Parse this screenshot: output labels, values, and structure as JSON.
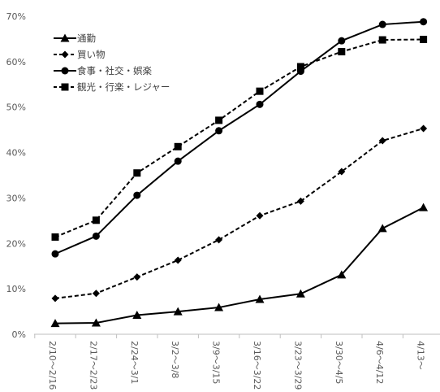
{
  "chart_data": {
    "type": "line",
    "title": "",
    "xlabel": "",
    "ylabel": "",
    "ylim": [
      0,
      70
    ],
    "y_ticks": [
      0,
      10,
      20,
      30,
      40,
      50,
      60,
      70
    ],
    "y_tick_labels": [
      "0%",
      "10%",
      "20%",
      "30%",
      "40%",
      "50%",
      "60%",
      "70%"
    ],
    "grid": false,
    "legend_position": "top-left",
    "categories": [
      "2/10～2/16",
      "2/17～2/23",
      "2/24～3/1",
      "3/2～3/8",
      "3/9～3/15",
      "3/16～3/22",
      "3/23～3/29",
      "3/30～4/5",
      "4/6～4/12",
      "4/13～"
    ],
    "series": [
      {
        "name": "通勤",
        "marker": "triangle",
        "dashed": false,
        "color": "#000000",
        "values": [
          2.4,
          2.5,
          4.2,
          5.0,
          5.9,
          7.7,
          8.9,
          13.1,
          23.3,
          27.9
        ]
      },
      {
        "name": "買い物",
        "marker": "diamond",
        "dashed": true,
        "color": "#000000",
        "values": [
          7.9,
          9.0,
          12.6,
          16.3,
          20.8,
          26.1,
          29.3,
          35.8,
          42.6,
          45.3
        ]
      },
      {
        "name": "食事・社交・娯楽",
        "marker": "circle",
        "dashed": false,
        "color": "#000000",
        "values": [
          17.7,
          21.6,
          30.6,
          38.1,
          44.8,
          50.6,
          57.9,
          64.6,
          68.2,
          68.8
        ]
      },
      {
        "name": "観光・行楽・レジャー",
        "marker": "square",
        "dashed": true,
        "color": "#000000",
        "values": [
          21.4,
          25.1,
          35.5,
          41.3,
          47.1,
          53.5,
          58.9,
          62.2,
          64.8,
          64.9
        ]
      }
    ]
  }
}
